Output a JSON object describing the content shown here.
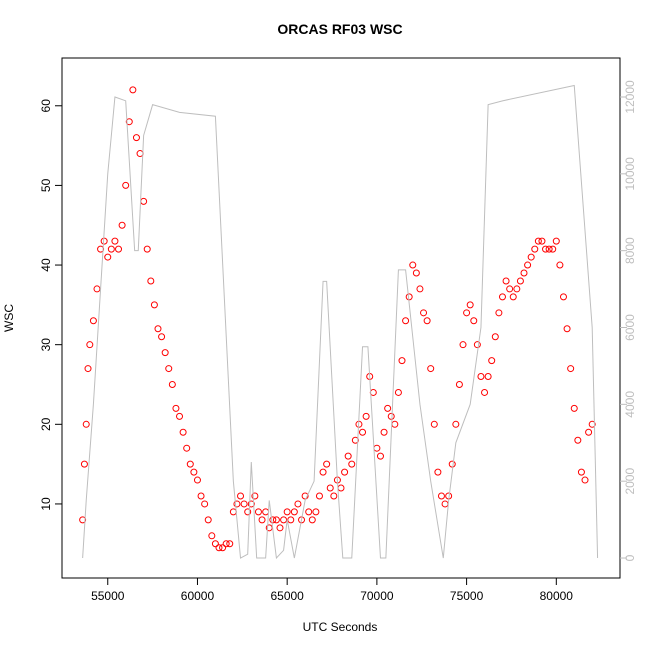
{
  "chart_data": {
    "type": "scatter",
    "title": "ORCAS RF03 WSC",
    "x_label": "UTC Seconds",
    "y_label": "WSC",
    "xlim": [
      52450,
      83550
    ],
    "xticks": [
      55000,
      60000,
      65000,
      70000,
      75000,
      80000
    ],
    "ylim": [
      0.7,
      66
    ],
    "yticks": [
      10,
      20,
      30,
      40,
      50,
      60
    ],
    "y2lim": [
      -520,
      13015
    ],
    "y2ticks": [
      0,
      2000,
      4000,
      6000,
      8000,
      10000,
      12000
    ],
    "series": [
      {
        "color": "#ff0000",
        "x": [
          53600,
          53700,
          53800,
          53900,
          54000,
          54200,
          54400,
          54600,
          54800,
          55000,
          55200,
          55400,
          55600,
          55800,
          56000,
          56200,
          56400,
          56600,
          56800,
          57000,
          57200,
          57400,
          57600,
          57800,
          58000,
          58200,
          58400,
          58600,
          58800,
          59000,
          59200,
          59400,
          59600,
          59800,
          60000,
          60200,
          60400,
          60600,
          60800,
          61000,
          61200,
          61400,
          61600,
          61800,
          62000,
          62200,
          62400,
          62600,
          62800,
          63000,
          63200,
          63400,
          63600,
          63800,
          64000,
          64200,
          64400,
          64600,
          64800,
          65000,
          65200,
          65400,
          65600,
          65800,
          66000,
          66200,
          66400,
          66600,
          66800,
          67000,
          67200,
          67400,
          67600,
          67800,
          68000,
          68200,
          68400,
          68600,
          68800,
          69000,
          69200,
          69400,
          69600,
          69800,
          70000,
          70200,
          70400,
          70600,
          70800,
          71000,
          71200,
          71400,
          71600,
          71800,
          72000,
          72200,
          72400,
          72600,
          72800,
          73000,
          73200,
          73400,
          73600,
          73800,
          74000,
          74200,
          74400,
          74600,
          74800,
          75000,
          75200,
          75400,
          75600,
          75800,
          76000,
          76200,
          76400,
          76600,
          76800,
          77000,
          77200,
          77400,
          77600,
          77800,
          78000,
          78200,
          78400,
          78600,
          78800,
          79000,
          79200,
          79400,
          79600,
          79800,
          80000,
          80200,
          80400,
          80600,
          80800,
          81000,
          81200,
          81400,
          81600,
          81800,
          82000
        ],
        "values": [
          8,
          15,
          20,
          27,
          30,
          33,
          37,
          42,
          43,
          41,
          42,
          43,
          42,
          45,
          50,
          58,
          62,
          56,
          54,
          48,
          42,
          38,
          35,
          32,
          31,
          29,
          27,
          25,
          22,
          21,
          19,
          17,
          15,
          14,
          13,
          11,
          10,
          8,
          6,
          5,
          4.5,
          4.5,
          5,
          5,
          9,
          10,
          11,
          10,
          9,
          10,
          11,
          9,
          8,
          9,
          7,
          8,
          8,
          7,
          8,
          9,
          8,
          9,
          10,
          8,
          11,
          9,
          8,
          9,
          11,
          14,
          15,
          12,
          11,
          13,
          12,
          14,
          16,
          15,
          18,
          20,
          19,
          21,
          26,
          24,
          17,
          16,
          19,
          22,
          21,
          20,
          24,
          28,
          33,
          36,
          40,
          39,
          37,
          34,
          33,
          27,
          20,
          14,
          11,
          10,
          11,
          15,
          20,
          25,
          30,
          34,
          35,
          33,
          30,
          26,
          24,
          26,
          28,
          31,
          34,
          36,
          38,
          37,
          36,
          37,
          38,
          39,
          40,
          41,
          42,
          43,
          43,
          42,
          42,
          42,
          43,
          40,
          36,
          32,
          27,
          22,
          18,
          14,
          13,
          19,
          20
        ]
      },
      {
        "color": "#bebebe",
        "axis": "y2",
        "x": [
          53600,
          53800,
          54200,
          54600,
          55000,
          55400,
          56000,
          56500,
          56700,
          57000,
          57500,
          59000,
          61000,
          62000,
          62400,
          62800,
          63000,
          63300,
          63800,
          64000,
          64400,
          64800,
          65000,
          65400,
          66000,
          66500,
          67000,
          67200,
          67800,
          68100,
          68600,
          69200,
          69500,
          70200,
          70500,
          71200,
          71600,
          72400,
          73000,
          73700,
          74000,
          74400,
          75200,
          75800,
          76200,
          77000,
          81000,
          82000,
          82300
        ],
        "values": [
          0,
          1500,
          4000,
          7000,
          10000,
          12000,
          11900,
          8000,
          8000,
          11000,
          11800,
          11600,
          11500,
          2000,
          0,
          100,
          2500,
          0,
          0,
          1500,
          0,
          200,
          1000,
          0,
          1500,
          2000,
          7200,
          7200,
          2000,
          0,
          0,
          5500,
          5500,
          0,
          0,
          7500,
          7500,
          4000,
          2000,
          0,
          1500,
          3000,
          4000,
          6000,
          11800,
          11900,
          12300,
          6000,
          0
        ]
      }
    ]
  }
}
